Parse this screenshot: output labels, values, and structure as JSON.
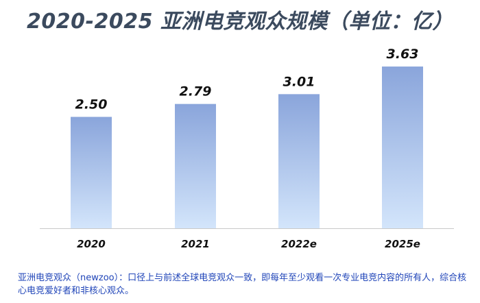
{
  "title": "2020-2025 亚洲电竞观众规模（单位：亿）",
  "chart_data": {
    "type": "bar",
    "title": "2020-2025 亚洲电竞观众规模（单位：亿）",
    "categories": [
      "2020",
      "2021",
      "2022e",
      "2025e"
    ],
    "values": [
      2.5,
      2.79,
      3.01,
      3.63
    ],
    "value_labels": [
      "2.50",
      "2.79",
      "3.01",
      "3.63"
    ],
    "ylim": [
      0,
      4.2
    ],
    "grid": false,
    "legend": "none",
    "colors": {
      "bar_top": "#8aa5db",
      "bar_bottom": "#d3e5fb",
      "axis": "#c8c8c8",
      "label": "#111111"
    }
  },
  "footnote": "亚洲电竞观众（newzoo）：口径上与前述全球电竞观众一致，即每年至少观看一次专业电竞内容的所有人，综合核心电竞爱好者和非核心观众。"
}
